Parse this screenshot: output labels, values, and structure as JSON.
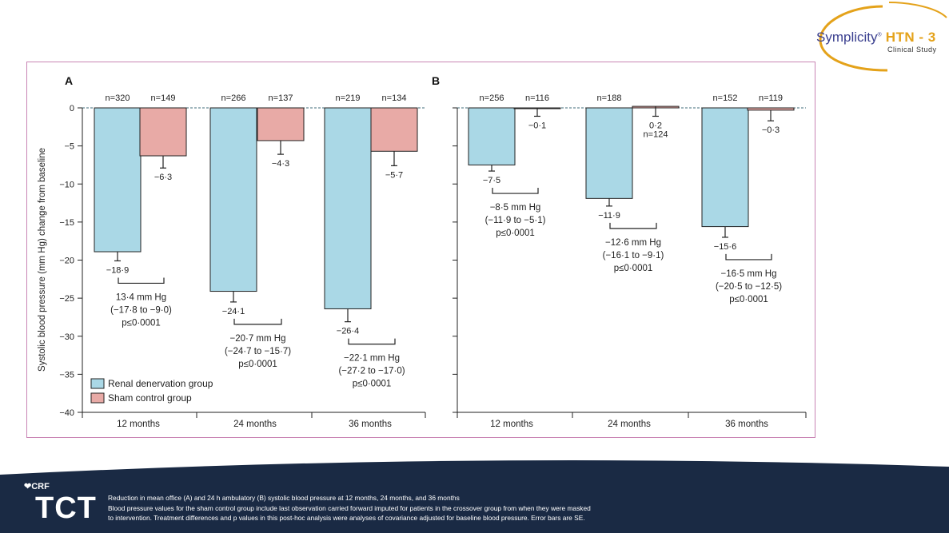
{
  "logo": {
    "brand": "Symplicity",
    "reg": "®",
    "product": "HTN - 3",
    "subtitle": "Clinical Study"
  },
  "footer": {
    "crf_label": "CRF",
    "tct_label": "TCT",
    "caption_lines": [
      "Reduction in mean office (A) and 24 h ambulatory (B) systolic blood pressure at 12 months, 24 months, and 36 months",
      "Blood pressure values for the sham control group include last observation carried forward imputed for patients in the crossover group from when they were masked",
      "to intervention. Treatment differences and p values in this post-hoc analysis were analyses of covariance adjusted for baseline blood pressure. Error bars are SE."
    ]
  },
  "colors": {
    "rdn": "#aad8e6",
    "sham": "#e8aaa6",
    "border": "#c985b4",
    "footer": "#1a2a44",
    "brand_blue": "#3a3f8f",
    "brand_orange": "#e4a21a"
  },
  "chart_data": {
    "type": "bar",
    "ylabel": "Systolic blood pressure (mm Hg) change from baseline",
    "ylim": [
      -40,
      0
    ],
    "yticks": [
      "0",
      "−5",
      "−10",
      "−15",
      "−20",
      "−25",
      "−30",
      "−35",
      "−40"
    ],
    "categories": [
      "12 months",
      "24 months",
      "36 months"
    ],
    "legend": [
      "Renal denervation group",
      "Sham control group"
    ],
    "panels": [
      {
        "label": "A",
        "series": [
          {
            "name": "Renal denervation group",
            "values": [
              -18.9,
              -24.1,
              -26.4
            ],
            "se": [
              1.2,
              1.4,
              1.7
            ],
            "value_labels": [
              "−18·9",
              "−24·1",
              "−26·4"
            ],
            "n_labels": [
              "n=320",
              "n=266",
              "n=219"
            ]
          },
          {
            "name": "Sham control group",
            "values": [
              -6.3,
              -4.3,
              -5.7
            ],
            "se": [
              1.6,
              1.8,
              1.9
            ],
            "value_labels": [
              "−6·3",
              "−4·3",
              "−5·7"
            ],
            "n_labels": [
              "n=149",
              "n=137",
              "n=134"
            ]
          }
        ],
        "differences": [
          {
            "diff": "13·4 mm Hg",
            "ci": "(−17·8 to −9·0)",
            "p": "p≤0·0001"
          },
          {
            "diff": "−20·7 mm Hg",
            "ci": "(−24·7 to −15·7)",
            "p": "p≤0·0001"
          },
          {
            "diff": "−22·1 mm Hg",
            "ci": "(−27·2 to −17·0)",
            "p": "p≤0·0001"
          }
        ]
      },
      {
        "label": "B",
        "series": [
          {
            "name": "Renal denervation group",
            "values": [
              -7.5,
              -11.9,
              -15.6
            ],
            "se": [
              0.8,
              1.0,
              1.4
            ],
            "value_labels": [
              "−7·5",
              "−11·9",
              "−15·6"
            ],
            "n_labels": [
              "n=256",
              "n=188",
              "n=152"
            ]
          },
          {
            "name": "Sham control group",
            "values": [
              -0.1,
              0.2,
              -0.3
            ],
            "se": [
              1.0,
              1.3,
              1.4
            ],
            "value_labels": [
              "−0·1",
              "0·2",
              "−0·3"
            ],
            "n_labels": [
              "n=116",
              "n=124",
              "n=119"
            ]
          }
        ],
        "differences": [
          {
            "diff": "−8·5 mm Hg",
            "ci": "(−11·9 to −5·1)",
            "p": "p≤0·0001"
          },
          {
            "diff": "−12·6 mm Hg",
            "ci": "(−16·1 to −9·1)",
            "p": "p≤0·0001"
          },
          {
            "diff": "−16·5 mm Hg",
            "ci": "(−20·5 to −12·5)",
            "p": "p≤0·0001"
          }
        ]
      }
    ]
  }
}
